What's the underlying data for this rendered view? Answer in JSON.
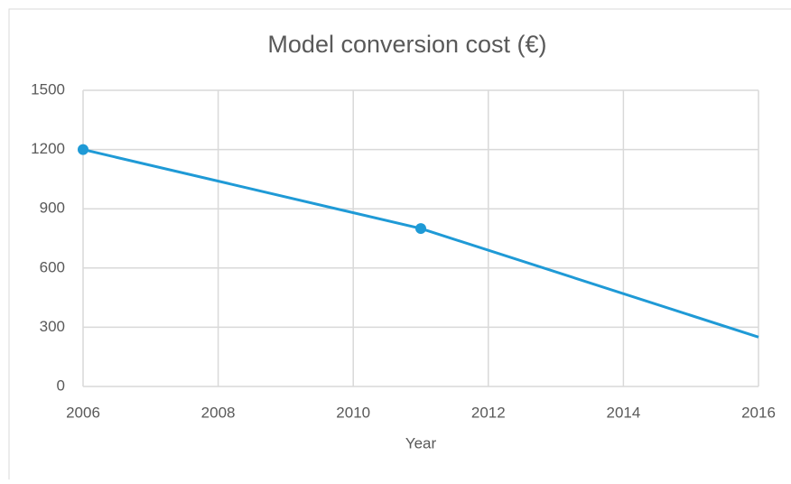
{
  "chart_data": {
    "type": "line",
    "title": "Model conversion cost (€)",
    "x_label": "Year",
    "x": [
      2006,
      2011,
      2016
    ],
    "series": [
      {
        "name": "Model conversion cost",
        "color": "#1f9ad6",
        "values": [
          1200,
          800,
          250
        ],
        "markers": [
          true,
          true,
          false
        ]
      }
    ],
    "xlim": [
      2006,
      2016
    ],
    "xticks": [
      2006,
      2008,
      2010,
      2012,
      2014,
      2016
    ],
    "ylim": [
      0,
      1500
    ],
    "yticks": [
      0,
      300,
      600,
      900,
      1200,
      1500
    ],
    "grid": true
  }
}
